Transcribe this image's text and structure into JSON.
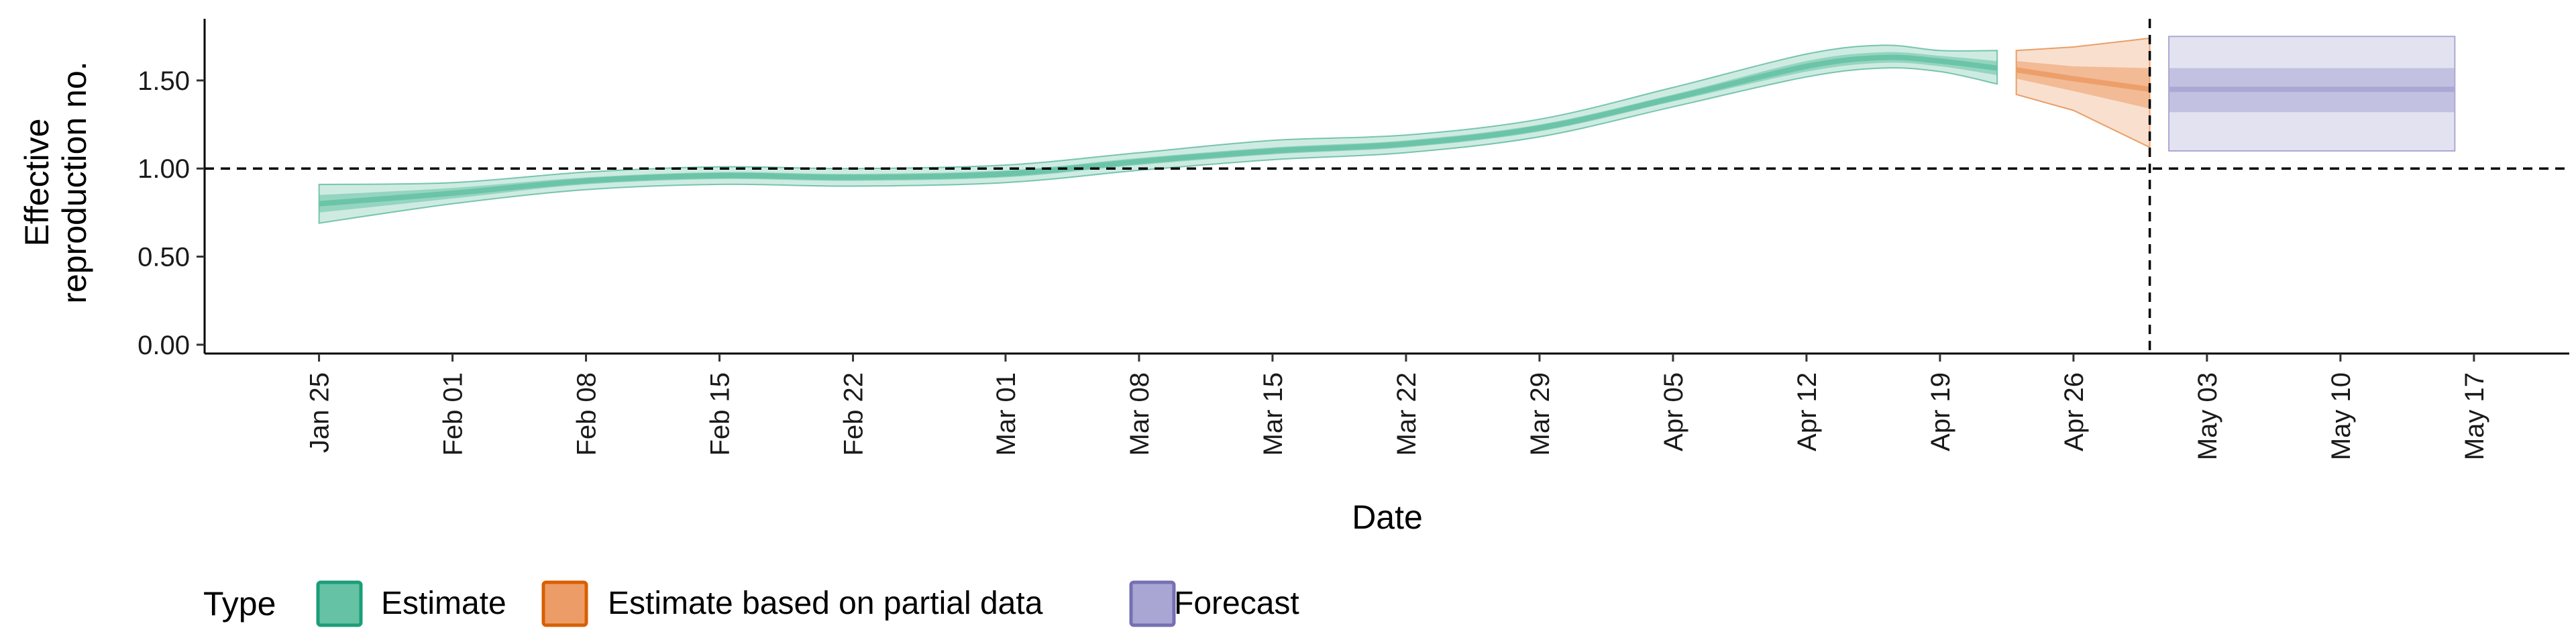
{
  "chart_data": {
    "type": "area",
    "xlabel": "Date",
    "ylabel_lines": [
      "Effective",
      "reproduction no."
    ],
    "x_type": "date",
    "xlim": [
      "2020-01-19",
      "2020-05-22"
    ],
    "ylim": [
      -0.05,
      1.85
    ],
    "x_ticks": [
      {
        "date": "2020-01-25",
        "label": "Jan 25"
      },
      {
        "date": "2020-02-01",
        "label": "Feb 01"
      },
      {
        "date": "2020-02-08",
        "label": "Feb 08"
      },
      {
        "date": "2020-02-15",
        "label": "Feb 15"
      },
      {
        "date": "2020-02-22",
        "label": "Feb 22"
      },
      {
        "date": "2020-03-01",
        "label": "Mar 01"
      },
      {
        "date": "2020-03-08",
        "label": "Mar 08"
      },
      {
        "date": "2020-03-15",
        "label": "Mar 15"
      },
      {
        "date": "2020-03-22",
        "label": "Mar 22"
      },
      {
        "date": "2020-03-29",
        "label": "Mar 29"
      },
      {
        "date": "2020-04-05",
        "label": "Apr 05"
      },
      {
        "date": "2020-04-12",
        "label": "Apr 12"
      },
      {
        "date": "2020-04-19",
        "label": "Apr 19"
      },
      {
        "date": "2020-04-26",
        "label": "Apr 26"
      },
      {
        "date": "2020-05-03",
        "label": "May 03"
      },
      {
        "date": "2020-05-10",
        "label": "May 10"
      },
      {
        "date": "2020-05-17",
        "label": "May 17"
      }
    ],
    "y_ticks": [
      {
        "value": 0.0,
        "label": "0.00"
      },
      {
        "value": 0.5,
        "label": "0.50"
      },
      {
        "value": 1.0,
        "label": "1.00"
      },
      {
        "value": 1.5,
        "label": "1.50"
      }
    ],
    "reference_lines": {
      "horizontal_y": 1.0,
      "vertical_date": "2020-04-30"
    },
    "grid": false,
    "legend_position": "bottom",
    "legend_title": "Type",
    "series": [
      {
        "name": "Estimate",
        "color": "#1b9e77",
        "fill": "#66c2a4",
        "points": [
          {
            "x": "2020-01-25",
            "median": 0.8,
            "lower90": 0.69,
            "upper90": 0.91,
            "lower50": 0.75,
            "upper50": 0.85
          },
          {
            "x": "2020-02-01",
            "median": 0.86,
            "lower90": 0.8,
            "upper90": 0.92,
            "lower50": 0.83,
            "upper50": 0.89
          },
          {
            "x": "2020-02-08",
            "median": 0.93,
            "lower90": 0.88,
            "upper90": 0.98,
            "lower50": 0.91,
            "upper50": 0.95
          },
          {
            "x": "2020-02-15",
            "median": 0.96,
            "lower90": 0.91,
            "upper90": 1.01,
            "lower50": 0.94,
            "upper50": 0.98
          },
          {
            "x": "2020-02-22",
            "median": 0.95,
            "lower90": 0.9,
            "upper90": 1.0,
            "lower50": 0.93,
            "upper50": 0.97
          },
          {
            "x": "2020-03-01",
            "median": 0.97,
            "lower90": 0.92,
            "upper90": 1.02,
            "lower50": 0.95,
            "upper50": 0.99
          },
          {
            "x": "2020-03-08",
            "median": 1.04,
            "lower90": 0.99,
            "upper90": 1.09,
            "lower50": 1.02,
            "upper50": 1.06
          },
          {
            "x": "2020-03-15",
            "median": 1.1,
            "lower90": 1.05,
            "upper90": 1.16,
            "lower50": 1.08,
            "upper50": 1.12
          },
          {
            "x": "2020-03-22",
            "median": 1.14,
            "lower90": 1.09,
            "upper90": 1.19,
            "lower50": 1.12,
            "upper50": 1.16
          },
          {
            "x": "2020-03-29",
            "median": 1.23,
            "lower90": 1.18,
            "upper90": 1.28,
            "lower50": 1.21,
            "upper50": 1.25
          },
          {
            "x": "2020-04-05",
            "median": 1.4,
            "lower90": 1.35,
            "upper90": 1.46,
            "lower50": 1.38,
            "upper50": 1.42
          },
          {
            "x": "2020-04-12",
            "median": 1.58,
            "lower90": 1.52,
            "upper90": 1.65,
            "lower50": 1.55,
            "upper50": 1.61
          },
          {
            "x": "2020-04-16",
            "median": 1.63,
            "lower90": 1.57,
            "upper90": 1.7,
            "lower50": 1.6,
            "upper50": 1.66
          },
          {
            "x": "2020-04-19",
            "median": 1.61,
            "lower90": 1.55,
            "upper90": 1.67,
            "lower50": 1.58,
            "upper50": 1.64
          },
          {
            "x": "2020-04-22",
            "median": 1.57,
            "lower90": 1.48,
            "upper90": 1.67,
            "lower50": 1.53,
            "upper50": 1.61
          }
        ]
      },
      {
        "name": "Estimate based on partial data",
        "color": "#d95f02",
        "fill": "#ec9c66",
        "points": [
          {
            "x": "2020-04-23",
            "median": 1.56,
            "lower90": 1.42,
            "upper90": 1.67,
            "lower50": 1.51,
            "upper50": 1.61
          },
          {
            "x": "2020-04-26",
            "median": 1.51,
            "lower90": 1.33,
            "upper90": 1.69,
            "lower50": 1.44,
            "upper50": 1.58
          },
          {
            "x": "2020-04-30",
            "median": 1.45,
            "lower90": 1.12,
            "upper90": 1.74,
            "lower50": 1.34,
            "upper50": 1.57
          }
        ]
      },
      {
        "name": "Forecast",
        "color": "#7570b3",
        "fill": "#a9a6d3",
        "points": [
          {
            "x": "2020-05-01",
            "median": 1.45,
            "lower90": 1.1,
            "upper90": 1.75,
            "lower50": 1.32,
            "upper50": 1.57
          },
          {
            "x": "2020-05-16",
            "median": 1.45,
            "lower90": 1.1,
            "upper90": 1.75,
            "lower50": 1.32,
            "upper50": 1.57
          }
        ]
      }
    ]
  }
}
